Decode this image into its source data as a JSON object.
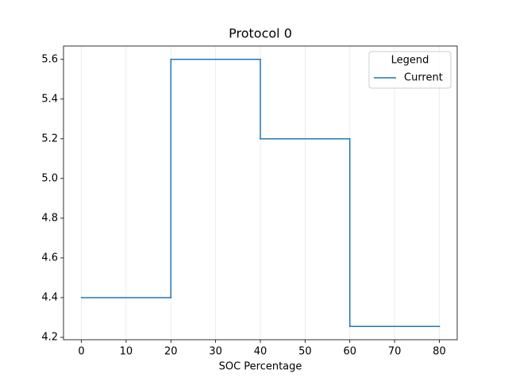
{
  "chart_data": {
    "type": "step",
    "step": "post",
    "title": "Protocol 0",
    "xlabel": "SOC Percentage",
    "x": [
      0,
      20,
      40,
      60,
      80
    ],
    "series": [
      {
        "name": "Current",
        "color": "#1f77b4",
        "values": [
          4.4,
          5.6,
          5.2,
          4.255,
          4.255
        ]
      }
    ],
    "xlim": [
      -4,
      84
    ],
    "xticks": [
      0,
      10,
      20,
      30,
      40,
      50,
      60,
      70,
      80
    ],
    "ylim": [
      4.188,
      5.667
    ],
    "yticks": [
      {
        "value": 4.2,
        "label": "4.2"
      },
      {
        "value": 4.4,
        "label": "4.4"
      },
      {
        "value": 4.6,
        "label": "4.6"
      },
      {
        "value": 4.8,
        "label": "4.8"
      },
      {
        "value": 5.0,
        "label": "5.0"
      },
      {
        "value": 5.2,
        "label": "5.2"
      },
      {
        "value": 5.4,
        "label": "5.4"
      },
      {
        "value": 5.6,
        "label": "5.6"
      }
    ],
    "grid": "x",
    "legend_title": "Legend",
    "legend_loc": "upper right"
  }
}
